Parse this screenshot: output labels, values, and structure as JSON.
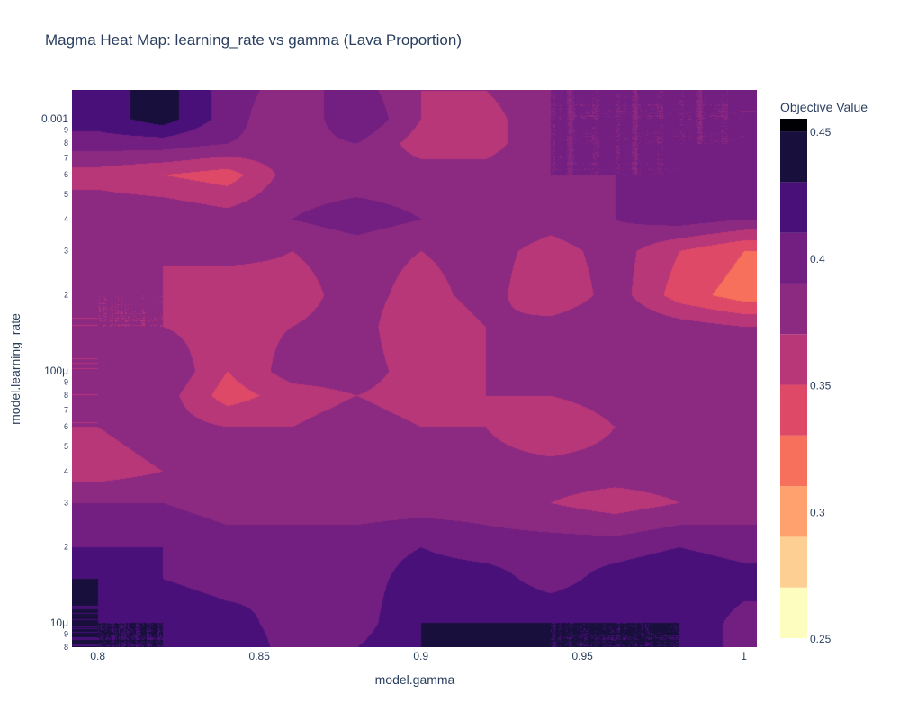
{
  "chart_data": {
    "type": "heatmap",
    "style": "contour",
    "title": "Magma Heat Map: learning_rate vs gamma (Lava Proportion)",
    "xlabel": "model.gamma",
    "ylabel": "model.learning_rate",
    "x_scale": "linear",
    "y_scale": "log",
    "xlim": [
      0.792,
      1.004
    ],
    "ylim": [
      8e-06,
      0.0013
    ],
    "x_ticks": [
      {
        "value": 0.8,
        "label": "0.8"
      },
      {
        "value": 0.85,
        "label": "0.85"
      },
      {
        "value": 0.9,
        "label": "0.9"
      },
      {
        "value": 0.95,
        "label": "0.95"
      },
      {
        "value": 1.0,
        "label": "1"
      }
    ],
    "y_major_ticks": [
      {
        "value": 0.001,
        "label": "0.001"
      },
      {
        "value": 0.0001,
        "label": "100μ"
      },
      {
        "value": 1e-05,
        "label": "10μ"
      }
    ],
    "y_minor_ticks": [
      {
        "value": 0.0009,
        "label": "9"
      },
      {
        "value": 0.0008,
        "label": "8"
      },
      {
        "value": 0.0007,
        "label": "7"
      },
      {
        "value": 0.0006,
        "label": "6"
      },
      {
        "value": 0.0005,
        "label": "5"
      },
      {
        "value": 0.0004,
        "label": "4"
      },
      {
        "value": 0.0003,
        "label": "3"
      },
      {
        "value": 0.0002,
        "label": "2"
      },
      {
        "value": 9e-05,
        "label": "9"
      },
      {
        "value": 8e-05,
        "label": "8"
      },
      {
        "value": 7e-05,
        "label": "7"
      },
      {
        "value": 6e-05,
        "label": "6"
      },
      {
        "value": 5e-05,
        "label": "5"
      },
      {
        "value": 4e-05,
        "label": "4"
      },
      {
        "value": 3e-05,
        "label": "3"
      },
      {
        "value": 2e-05,
        "label": "2"
      },
      {
        "value": 9e-06,
        "label": "9"
      },
      {
        "value": 8e-06,
        "label": "8"
      }
    ],
    "colorscale": "Magma (reversed)",
    "colorbar": {
      "title": "Objective Value",
      "range": [
        0.25,
        0.455
      ],
      "ticks": [
        {
          "value": 0.25,
          "label": "0.25"
        },
        {
          "value": 0.3,
          "label": "0.3"
        },
        {
          "value": 0.35,
          "label": "0.35"
        },
        {
          "value": 0.4,
          "label": "0.4"
        },
        {
          "value": 0.45,
          "label": "0.45"
        }
      ],
      "levels": [
        0.25,
        0.27,
        0.29,
        0.31,
        0.33,
        0.35,
        0.37,
        0.39,
        0.41,
        0.43,
        0.45
      ],
      "colors": [
        "#fcfdbf",
        "#fecf92",
        "#fea16e",
        "#f6705b",
        "#de4968",
        "#b73779",
        "#8c2981",
        "#721f81",
        "#4a1079",
        "#180f3d",
        "#000004"
      ]
    },
    "x": [
      0.8,
      0.82,
      0.84,
      0.86,
      0.88,
      0.9,
      0.92,
      0.94,
      0.96,
      0.98,
      1.0
    ],
    "y": [
      8e-06,
      1e-05,
      1.5e-05,
      2e-05,
      3e-05,
      4e-05,
      6e-05,
      8e-05,
      0.0001,
      0.00015,
      0.0002,
      0.0003,
      0.0004,
      0.0006,
      0.0008,
      0.001,
      0.0013
    ],
    "z": [
      [
        0.43,
        0.43,
        0.43,
        0.4,
        0.41,
        0.43,
        0.44,
        0.43,
        0.43,
        0.43,
        0.4
      ],
      [
        0.43,
        0.43,
        0.42,
        0.4,
        0.4,
        0.43,
        0.43,
        0.43,
        0.43,
        0.43,
        0.4
      ],
      [
        0.43,
        0.41,
        0.4,
        0.41,
        0.4,
        0.42,
        0.42,
        0.4,
        0.42,
        0.43,
        0.42
      ],
      [
        0.41,
        0.41,
        0.4,
        0.4,
        0.4,
        0.41,
        0.4,
        0.4,
        0.4,
        0.41,
        0.4
      ],
      [
        0.39,
        0.39,
        0.38,
        0.38,
        0.38,
        0.38,
        0.38,
        0.37,
        0.36,
        0.37,
        0.38
      ],
      [
        0.36,
        0.37,
        0.38,
        0.37,
        0.37,
        0.38,
        0.38,
        0.38,
        0.38,
        0.38,
        0.38
      ],
      [
        0.37,
        0.38,
        0.37,
        0.37,
        0.38,
        0.37,
        0.37,
        0.35,
        0.37,
        0.38,
        0.38
      ],
      [
        0.37,
        0.38,
        0.34,
        0.36,
        0.37,
        0.36,
        0.37,
        0.37,
        0.38,
        0.38,
        0.39
      ],
      [
        0.37,
        0.39,
        0.35,
        0.38,
        0.38,
        0.36,
        0.37,
        0.38,
        0.38,
        0.39,
        0.38
      ],
      [
        0.37,
        0.37,
        0.36,
        0.37,
        0.38,
        0.35,
        0.37,
        0.38,
        0.39,
        0.38,
        0.37
      ],
      [
        0.37,
        0.37,
        0.35,
        0.36,
        0.38,
        0.36,
        0.38,
        0.35,
        0.38,
        0.34,
        0.32
      ],
      [
        0.38,
        0.37,
        0.38,
        0.37,
        0.38,
        0.37,
        0.38,
        0.36,
        0.38,
        0.35,
        0.33
      ],
      [
        0.39,
        0.39,
        0.38,
        0.39,
        0.4,
        0.39,
        0.39,
        0.38,
        0.39,
        0.4,
        0.39
      ],
      [
        0.36,
        0.35,
        0.34,
        0.38,
        0.38,
        0.38,
        0.38,
        0.39,
        0.39,
        0.39,
        0.4
      ],
      [
        0.4,
        0.4,
        0.39,
        0.38,
        0.39,
        0.36,
        0.36,
        0.39,
        0.39,
        0.39,
        0.39
      ],
      [
        0.42,
        0.44,
        0.4,
        0.37,
        0.41,
        0.37,
        0.36,
        0.39,
        0.39,
        0.39,
        0.39
      ],
      [
        0.42,
        0.44,
        0.4,
        0.38,
        0.4,
        0.37,
        0.37,
        0.39,
        0.39,
        0.39,
        0.39
      ]
    ]
  }
}
